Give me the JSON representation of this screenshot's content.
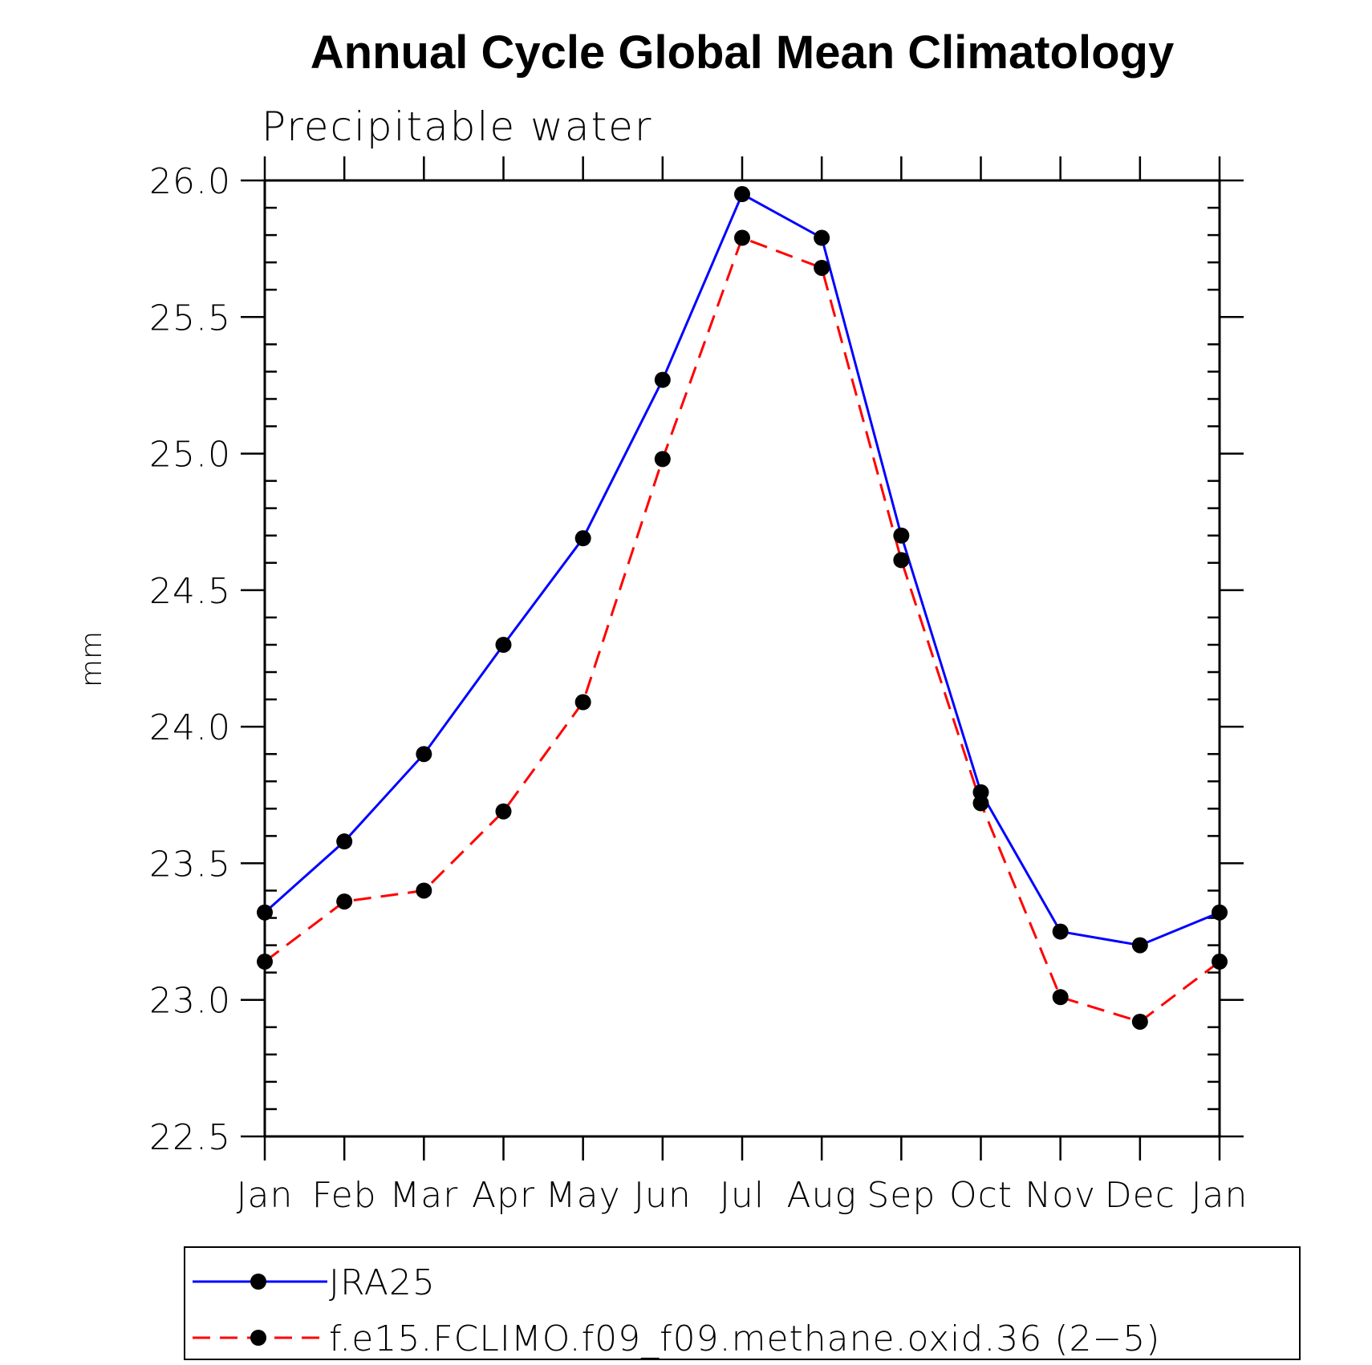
{
  "chart_data": {
    "type": "line",
    "title": "Annual Cycle Global Mean Climatology",
    "subtitle": "Precipitable water",
    "xlabel": "",
    "ylabel": "mm",
    "categories": [
      "Jan",
      "Feb",
      "Mar",
      "Apr",
      "May",
      "Jun",
      "Jul",
      "Aug",
      "Sep",
      "Oct",
      "Nov",
      "Dec",
      "Jan"
    ],
    "ylim": [
      22.5,
      26.0
    ],
    "yticks": [
      "22.5",
      "23.0",
      "23.5",
      "24.0",
      "24.5",
      "25.0",
      "25.5",
      "26.0"
    ],
    "ytick_values": [
      22.5,
      23.0,
      23.5,
      24.0,
      24.5,
      25.0,
      25.5,
      26.0
    ],
    "grid": false,
    "legend_position": "bottom",
    "series": [
      {
        "name": "JRA25",
        "color": "#0000ff",
        "line_style": "solid",
        "marker": "filled-circle",
        "values": [
          23.32,
          23.58,
          23.9,
          24.3,
          24.69,
          25.27,
          25.95,
          25.79,
          24.7,
          23.76,
          23.25,
          23.2,
          23.32
        ]
      },
      {
        "name": "f.e15.FCLIMO.f09_f09.methane.oxid.36 (2−5)",
        "color": "#ff0000",
        "line_style": "dashed",
        "marker": "filled-circle",
        "values": [
          23.14,
          23.36,
          23.4,
          23.69,
          24.09,
          24.98,
          25.79,
          25.68,
          24.61,
          23.72,
          23.01,
          22.92,
          23.14
        ]
      }
    ]
  }
}
